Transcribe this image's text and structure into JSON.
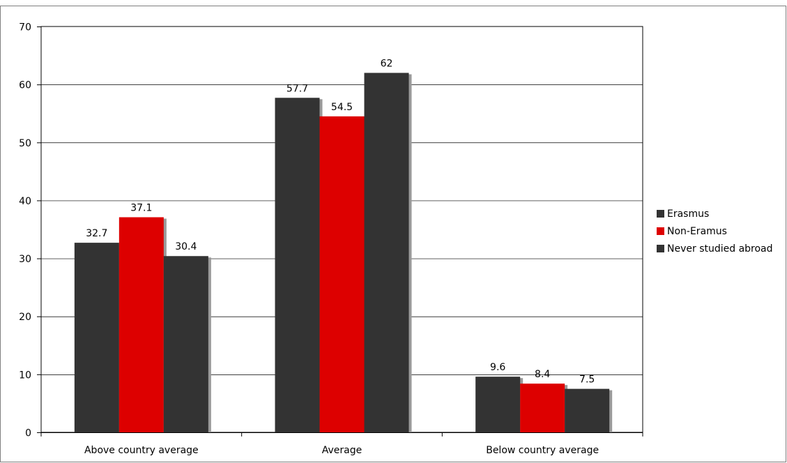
{
  "chart_data": {
    "type": "bar",
    "categories": [
      "Above country average",
      "Average",
      "Below country average"
    ],
    "series": [
      {
        "name": "Erasmus",
        "values": [
          32.7,
          57.7,
          9.6
        ],
        "color": "#333333"
      },
      {
        "name": "Non-Eramus",
        "values": [
          37.1,
          54.5,
          8.4
        ],
        "color": "#dd0000"
      },
      {
        "name": "Never studied abroad",
        "values": [
          30.4,
          62,
          7.5
        ],
        "color": "#333333"
      }
    ],
    "ylim": [
      0,
      70
    ],
    "yticks": [
      0,
      10,
      20,
      30,
      40,
      50,
      60,
      70
    ],
    "grid": true,
    "legend_position": "right"
  }
}
